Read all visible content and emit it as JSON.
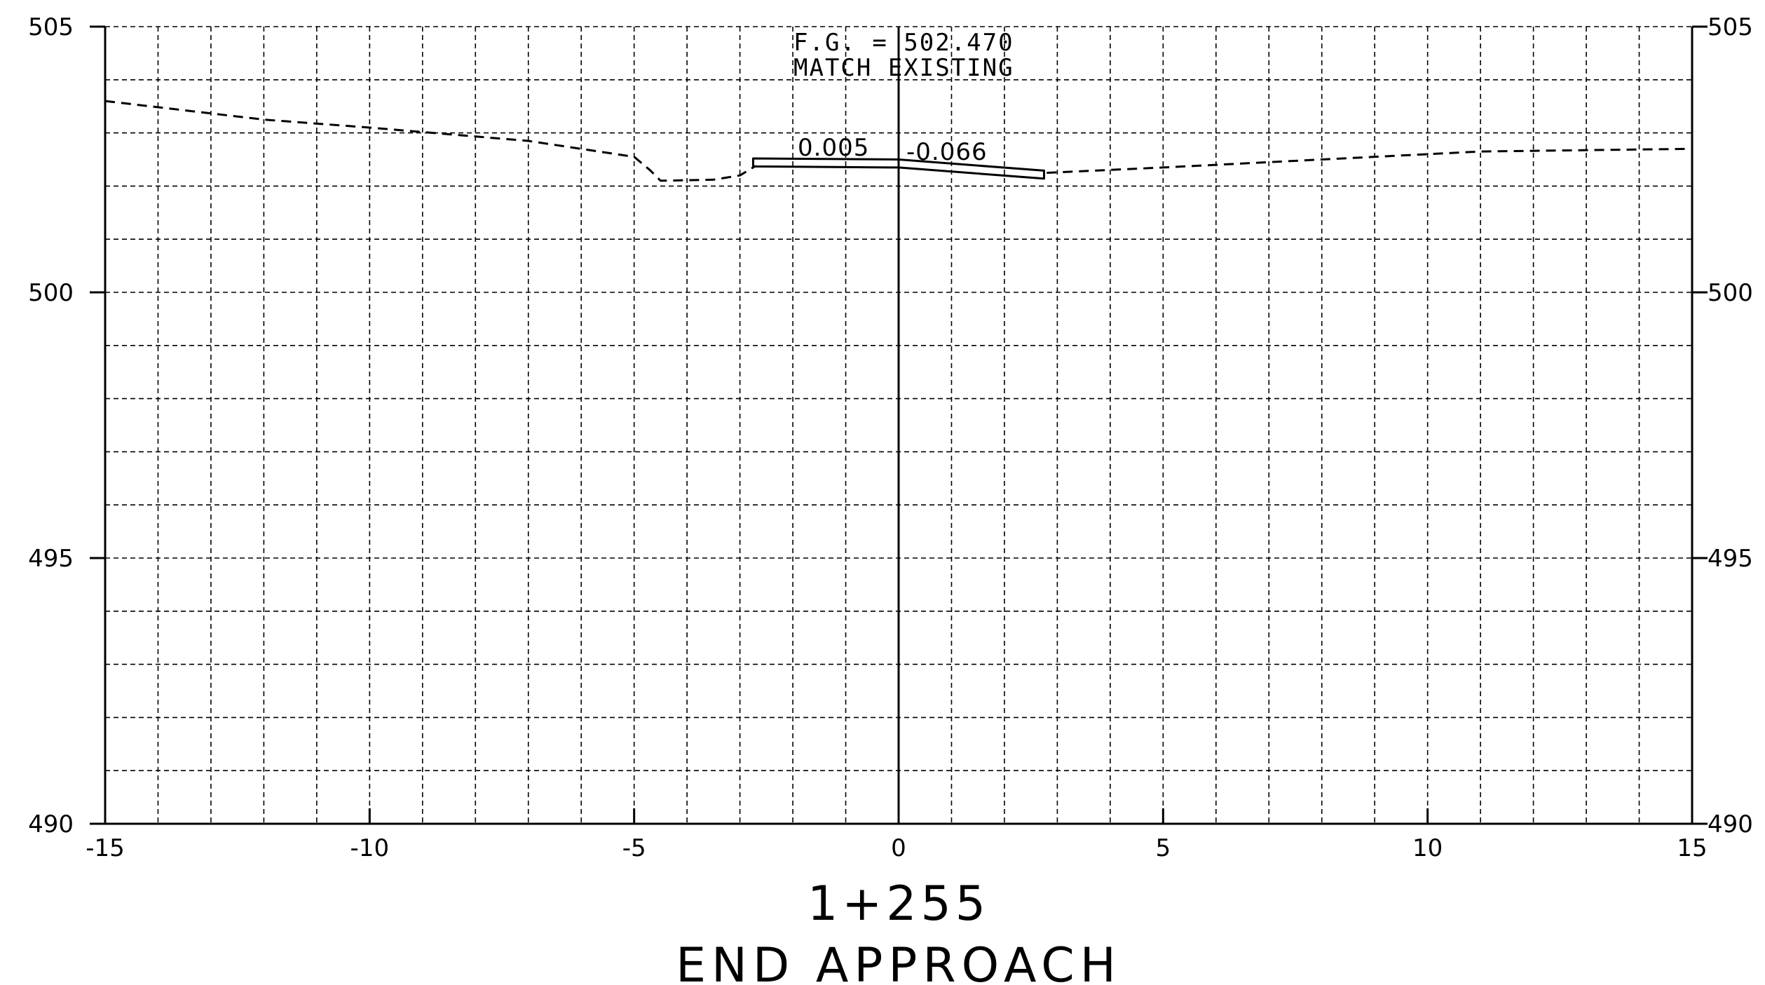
{
  "section": {
    "station": "1+255",
    "title": "END APPROACH"
  },
  "annotation": {
    "line1": "F.G. = 502.470",
    "line2": "MATCH EXISTING"
  },
  "slopes": {
    "left": "0.005",
    "right": "-0.066"
  },
  "chart_data": {
    "type": "line",
    "xlim": [
      -15,
      15
    ],
    "ylim": [
      490,
      505
    ],
    "x_ticks": [
      -15,
      -10,
      -5,
      0,
      5,
      10,
      15
    ],
    "x_tick_labels": [
      "-15",
      "-10",
      "-5",
      "0",
      "5",
      "10",
      "15"
    ],
    "y_ticks": [
      490,
      495,
      500,
      505
    ],
    "y_tick_labels": [
      "490",
      "495",
      "500",
      "505"
    ],
    "grid": true,
    "grid_x_step": 1,
    "grid_y_step": 1,
    "series": [
      {
        "style": "dashed",
        "points": [
          [
            -15,
            503.6
          ],
          [
            -12,
            503.25
          ],
          [
            -10,
            503.1
          ],
          [
            -7,
            502.85
          ],
          [
            -5,
            502.55
          ],
          [
            -4.7,
            502.3
          ],
          [
            -4.5,
            502.1
          ],
          [
            -3.5,
            502.12
          ],
          [
            -3.0,
            502.2
          ],
          [
            -2.7,
            502.38
          ]
        ]
      },
      {
        "style": "dashed",
        "points": [
          [
            2.8,
            502.25
          ],
          [
            5,
            502.35
          ],
          [
            8,
            502.5
          ],
          [
            11,
            502.65
          ],
          [
            15,
            502.7
          ]
        ]
      },
      {
        "style": "solid",
        "closed": true,
        "points": [
          [
            -2.75,
            502.52
          ],
          [
            0,
            502.5
          ],
          [
            2.75,
            502.29
          ],
          [
            2.75,
            502.14
          ],
          [
            0,
            502.35
          ],
          [
            -2.75,
            502.37
          ]
        ]
      }
    ]
  },
  "colors": {
    "line": "#000000",
    "grid": "#000000",
    "background": "#ffffff"
  }
}
